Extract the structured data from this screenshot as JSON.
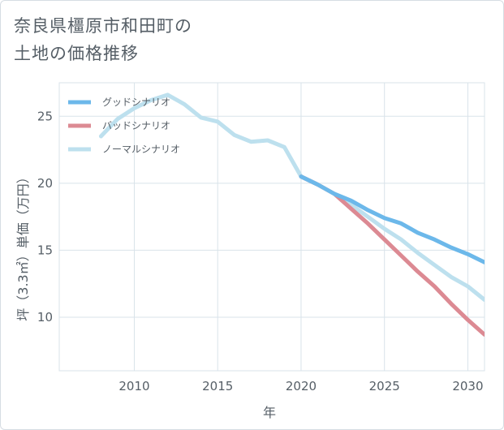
{
  "title": {
    "line1": "奈良県橿原市和田町の",
    "line2": "土地の価格推移"
  },
  "colors": {
    "good": "#6cb8ea",
    "bad": "#dc8a93",
    "normal": "#bde0ee",
    "grid": "#d9e3ea",
    "text": "#555e66"
  },
  "chart_data": {
    "type": "line",
    "title": "奈良県橿原市和田町の土地の価格推移",
    "xlabel": "年",
    "ylabel": "坪（3.3㎡）単価（万円）",
    "xlim": [
      2005.5,
      2031
    ],
    "ylim": [
      6,
      27.5
    ],
    "xticks": [
      2010,
      2015,
      2020,
      2025,
      2030
    ],
    "yticks": [
      10,
      15,
      20,
      25
    ],
    "grid": true,
    "legend": "top-left",
    "series": [
      {
        "name": "グッドシナリオ",
        "color": "#6cb8ea",
        "x": [
          2020,
          2021,
          2022,
          2023,
          2024,
          2025,
          2026,
          2027,
          2028,
          2029,
          2030,
          2031
        ],
        "y": [
          20.5,
          19.9,
          19.2,
          18.7,
          18.0,
          17.4,
          17.0,
          16.3,
          15.8,
          15.2,
          14.7,
          14.1
        ]
      },
      {
        "name": "バッドシナリオ",
        "color": "#dc8a93",
        "x": [
          2020,
          2021,
          2022,
          2023,
          2024,
          2025,
          2026,
          2027,
          2028,
          2029,
          2030,
          2031
        ],
        "y": [
          20.5,
          19.9,
          19.2,
          18.1,
          17.0,
          15.8,
          14.6,
          13.4,
          12.3,
          11.0,
          9.8,
          8.7
        ]
      },
      {
        "name": "ノーマルシナリオ",
        "color": "#bde0ee",
        "x": [
          2008,
          2009,
          2010,
          2011,
          2012,
          2013,
          2014,
          2015,
          2016,
          2017,
          2018,
          2019,
          2020,
          2021,
          2022,
          2023,
          2024,
          2025,
          2026,
          2027,
          2028,
          2029,
          2030,
          2031
        ],
        "y": [
          23.5,
          24.8,
          25.6,
          26.2,
          26.6,
          25.9,
          24.9,
          24.6,
          23.6,
          23.1,
          23.2,
          22.7,
          20.5,
          19.9,
          19.2,
          18.4,
          17.5,
          16.6,
          15.8,
          14.8,
          13.9,
          13.0,
          12.3,
          11.3
        ]
      }
    ]
  }
}
